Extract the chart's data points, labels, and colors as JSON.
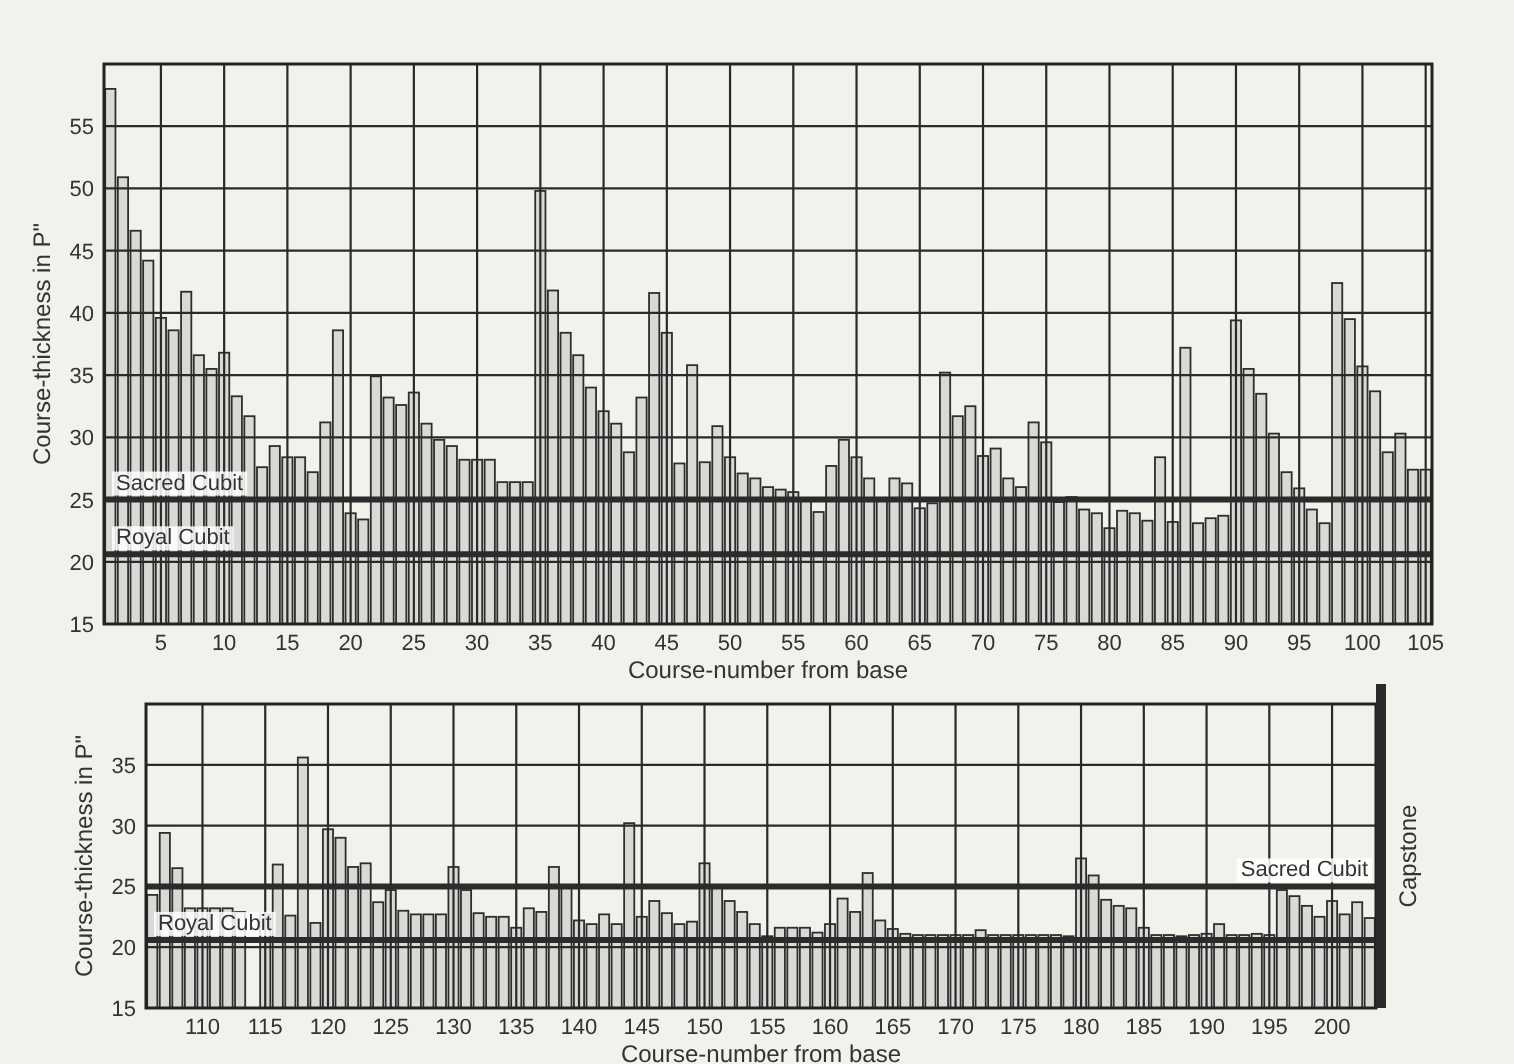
{
  "chart_data": [
    {
      "type": "bar",
      "xlabel": "Course-number from base",
      "ylabel": "Course-thickness in P\"",
      "color": "#d9d9d6",
      "grid": true,
      "x": [
        1,
        2,
        3,
        4,
        5,
        6,
        7,
        8,
        9,
        10,
        11,
        12,
        13,
        14,
        15,
        16,
        17,
        18,
        19,
        20,
        21,
        22,
        23,
        24,
        25,
        26,
        27,
        28,
        29,
        30,
        31,
        32,
        33,
        34,
        35,
        36,
        37,
        38,
        39,
        40,
        41,
        42,
        43,
        44,
        45,
        46,
        47,
        48,
        49,
        50,
        51,
        52,
        53,
        54,
        55,
        56,
        57,
        58,
        59,
        60,
        61,
        62,
        63,
        64,
        65,
        66,
        67,
        68,
        69,
        70,
        71,
        72,
        73,
        74,
        75,
        76,
        77,
        78,
        79,
        80,
        81,
        82,
        83,
        84,
        85,
        86,
        87,
        88,
        89,
        90,
        91,
        92,
        93,
        94,
        95,
        96,
        97,
        98,
        99,
        100,
        101,
        102,
        103,
        104,
        105
      ],
      "values": [
        58.0,
        50.9,
        46.6,
        44.2,
        39.6,
        38.6,
        41.7,
        36.6,
        35.5,
        36.8,
        33.3,
        31.7,
        27.6,
        29.3,
        28.4,
        28.4,
        27.2,
        31.2,
        38.6,
        23.9,
        23.4,
        34.9,
        33.2,
        32.6,
        33.6,
        31.1,
        29.8,
        29.3,
        28.2,
        28.2,
        28.2,
        26.4,
        26.4,
        26.4,
        49.8,
        41.8,
        38.4,
        36.6,
        34.0,
        32.1,
        31.1,
        28.8,
        33.2,
        41.6,
        38.4,
        27.9,
        35.8,
        28.0,
        30.9,
        28.4,
        27.1,
        26.7,
        26.0,
        25.8,
        25.6,
        24.9,
        24.0,
        27.7,
        29.8,
        28.4,
        26.7,
        25.1,
        26.7,
        26.3,
        24.3,
        24.7,
        35.2,
        31.7,
        32.5,
        28.5,
        29.1,
        26.7,
        26.0,
        31.2,
        29.6,
        24.8,
        25.2,
        24.2,
        23.9,
        22.7,
        24.1,
        23.9,
        23.3,
        28.4,
        23.2,
        37.2,
        23.1,
        23.5,
        23.7,
        39.4,
        35.5,
        33.5,
        30.3,
        27.2,
        25.9,
        24.2,
        23.1,
        42.4,
        39.5,
        35.7,
        33.7,
        28.8,
        30.3,
        27.4,
        27.4
      ],
      "xlim": [
        0.5,
        105.5
      ],
      "xticks": [
        5,
        10,
        15,
        20,
        25,
        30,
        35,
        40,
        45,
        50,
        55,
        60,
        65,
        70,
        75,
        80,
        85,
        90,
        95,
        100,
        105
      ],
      "ylim": [
        15,
        60
      ],
      "yticks": [
        15,
        20,
        25,
        30,
        35,
        40,
        45,
        50,
        55
      ],
      "ref_lines": [
        {
          "axis": "y",
          "value": 25,
          "label": "Sacred Cubit",
          "color": "#2b2b2b"
        },
        {
          "axis": "y",
          "value": 20.6,
          "label": "Royal Cubit",
          "color": "#2b2b2b"
        }
      ]
    },
    {
      "type": "bar",
      "xlabel": "Course-number from base",
      "ylabel": "Course-thickness in P\"",
      "color": "#d9d9d6",
      "grid": true,
      "x": [
        106,
        107,
        108,
        109,
        110,
        111,
        112,
        113,
        114,
        115,
        116,
        117,
        118,
        119,
        120,
        121,
        122,
        123,
        124,
        125,
        126,
        127,
        128,
        129,
        130,
        131,
        132,
        133,
        134,
        135,
        136,
        137,
        138,
        139,
        140,
        141,
        142,
        143,
        144,
        145,
        146,
        147,
        148,
        149,
        150,
        151,
        152,
        153,
        154,
        155,
        156,
        157,
        158,
        159,
        160,
        161,
        162,
        163,
        164,
        165,
        166,
        167,
        168,
        169,
        170,
        171,
        172,
        173,
        174,
        175,
        176,
        177,
        178,
        179,
        180,
        181,
        182,
        183,
        184,
        185,
        186,
        187,
        188,
        189,
        190,
        191,
        192,
        193,
        194,
        195,
        196,
        197,
        198,
        199,
        200,
        201,
        202,
        203
      ],
      "values": [
        24.3,
        29.4,
        26.5,
        23.2,
        23.2,
        23.2,
        23.2,
        22.9,
        null,
        22.7,
        26.8,
        22.6,
        35.6,
        22.0,
        29.7,
        29.0,
        26.6,
        26.9,
        23.7,
        24.7,
        23.0,
        22.7,
        22.7,
        22.7,
        26.6,
        24.7,
        22.8,
        22.5,
        22.5,
        21.6,
        23.2,
        22.9,
        26.6,
        25.1,
        22.2,
        21.9,
        22.7,
        21.9,
        30.2,
        22.5,
        23.8,
        22.8,
        21.9,
        22.1,
        26.9,
        25.1,
        23.8,
        22.9,
        21.9,
        20.9,
        21.6,
        21.6,
        21.6,
        21.2,
        21.9,
        24.0,
        22.9,
        26.1,
        22.2,
        21.5,
        21.1,
        21.0,
        21.0,
        21.0,
        21.0,
        21.0,
        21.4,
        21.0,
        21.0,
        21.0,
        21.0,
        21.0,
        21.0,
        20.9,
        27.3,
        25.9,
        23.9,
        23.4,
        23.2,
        21.6,
        21.0,
        21.0,
        20.9,
        21.0,
        21.1,
        21.9,
        21.0,
        21.0,
        21.1,
        21.0,
        24.7,
        24.2,
        23.4,
        22.5,
        23.8,
        22.7,
        23.7,
        22.4
      ],
      "xlim": [
        105.5,
        203.5
      ],
      "xticks": [
        110,
        115,
        120,
        125,
        130,
        135,
        140,
        145,
        150,
        155,
        160,
        165,
        170,
        175,
        180,
        185,
        190,
        195,
        200
      ],
      "ylim": [
        15,
        40
      ],
      "yticks": [
        15,
        20,
        25,
        30,
        35
      ],
      "ref_lines": [
        {
          "axis": "y",
          "value": 25,
          "label": "Sacred Cubit",
          "color": "#2b2b2b"
        },
        {
          "axis": "y",
          "value": 20.6,
          "label": "Royal Cubit",
          "color": "#2b2b2b"
        }
      ],
      "annotations": [
        "Capstone"
      ]
    }
  ]
}
